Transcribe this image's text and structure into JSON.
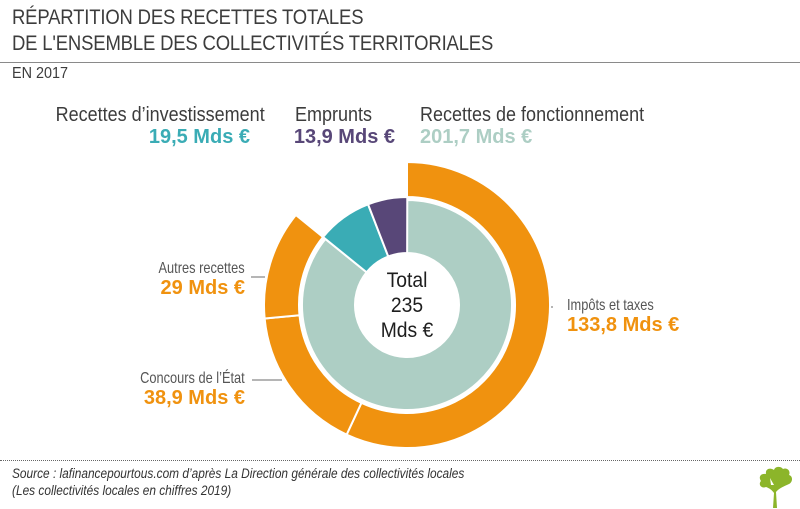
{
  "header": {
    "title_line1": "RÉPARTITION DES RECETTES TOTALES",
    "title_line2": "DE L'ENSEMBLE DES COLLECTIVITÉS TERRITORIALES",
    "subtitle": "EN 2017"
  },
  "legend": {
    "investissement": {
      "label": "Recettes d’investissement",
      "value": "19,5 Mds €",
      "color": "#3aacb5"
    },
    "emprunts": {
      "label": "Emprunts",
      "value": "13,9 Mds €",
      "color": "#584778"
    },
    "fonctionnement": {
      "label": "Recettes de fonctionnement",
      "value": "201,7 Mds €",
      "color": "#adcec4"
    }
  },
  "center": {
    "line1": "Total",
    "line2": "235",
    "line3": "Mds €"
  },
  "outer_labels": {
    "impots": {
      "name": "Impôts et taxes",
      "value": "133,8 Mds €"
    },
    "concours": {
      "name": "Concours de l’État",
      "value": "38,9 Mds €"
    },
    "autres": {
      "name": "Autres recettes",
      "value": "29 Mds €"
    }
  },
  "footer": {
    "source_line1": "Source : lafinancepourtous.com d’après La Direction générale des collectivités locales",
    "source_line2": "(Les collectivités locales en chiffres 2019)"
  },
  "colors": {
    "orange": "#f0920f",
    "teal": "#3aacb5",
    "purple": "#584778",
    "light_teal": "#adcec4",
    "logo_green": "#8cb52a"
  },
  "chart_data": {
    "type": "pie",
    "title": "Répartition des recettes totales de l'ensemble des collectivités territoriales en 2017",
    "unit": "Mds €",
    "total": 235,
    "inner_ring": [
      {
        "name": "Recettes de fonctionnement",
        "value": 201.7,
        "color": "#adcec4"
      },
      {
        "name": "Recettes d’investissement",
        "value": 19.5,
        "color": "#3aacb5"
      },
      {
        "name": "Emprunts",
        "value": 13.9,
        "color": "#584778"
      }
    ],
    "outer_ring": [
      {
        "name": "Impôts et taxes",
        "value": 133.8,
        "color": "#f0920f"
      },
      {
        "name": "Concours de l’État",
        "value": 38.9,
        "color": "#f0920f"
      },
      {
        "name": "Autres recettes",
        "value": 29,
        "color": "#f0920f"
      }
    ]
  }
}
